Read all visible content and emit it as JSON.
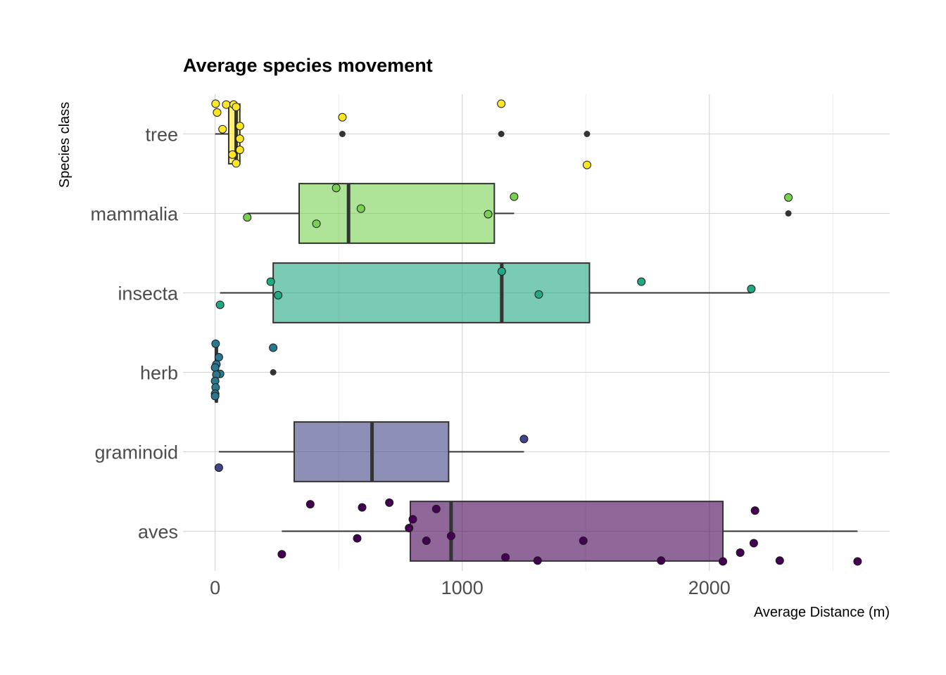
{
  "chart_data": {
    "type": "boxplot",
    "title": "Average species movement",
    "xlabel": "Average Distance (m)",
    "ylabel": "Species class",
    "xlim": [
      -130,
      2730
    ],
    "x_ticks": [
      0,
      1000,
      2000
    ],
    "x_tick_labels": [
      "0",
      "1000",
      "2000"
    ],
    "grid": true,
    "legend": "none",
    "categories": [
      "tree",
      "mammalia",
      "insecta",
      "herb",
      "graminoid",
      "aves"
    ],
    "series": [
      {
        "category": "tree",
        "color": "#fde725",
        "box": {
          "whisker_low": 0,
          "q1": 55,
          "median": 85,
          "q3": 100,
          "whisker_high": 100
        },
        "outliers": [
          515,
          1158,
          1505
        ],
        "points": [
          {
            "x": 2,
            "y": 0.38
          },
          {
            "x": 45,
            "y": 0.37
          },
          {
            "x": 75,
            "y": 0.37
          },
          {
            "x": 85,
            "y": 0.34
          },
          {
            "x": 8,
            "y": 0.27
          },
          {
            "x": 100,
            "y": 0.1
          },
          {
            "x": 30,
            "y": 0.06
          },
          {
            "x": 100,
            "y": -0.06
          },
          {
            "x": 100,
            "y": -0.2
          },
          {
            "x": 70,
            "y": -0.26
          },
          {
            "x": 85,
            "y": -0.37
          },
          {
            "x": 515,
            "y": 0.21
          },
          {
            "x": 1158,
            "y": 0.38
          },
          {
            "x": 1505,
            "y": -0.39
          }
        ]
      },
      {
        "category": "mammalia",
        "color": "#7ad151",
        "box": {
          "whisker_low": 130,
          "q1": 340,
          "median": 540,
          "q3": 1130,
          "whisker_high": 1210
        },
        "outliers": [
          2320
        ],
        "points": [
          {
            "x": 490,
            "y": 0.32
          },
          {
            "x": 590,
            "y": 0.06
          },
          {
            "x": 410,
            "y": -0.13
          },
          {
            "x": 1105,
            "y": -0.01
          },
          {
            "x": 130,
            "y": -0.05
          },
          {
            "x": 1210,
            "y": 0.21
          },
          {
            "x": 2320,
            "y": 0.2
          }
        ]
      },
      {
        "category": "insecta",
        "color": "#22a884",
        "box": {
          "whisker_low": 20,
          "q1": 235,
          "median": 1160,
          "q3": 1515,
          "whisker_high": 2170
        },
        "outliers": [],
        "points": [
          {
            "x": 225,
            "y": 0.14
          },
          {
            "x": 255,
            "y": -0.03
          },
          {
            "x": 20,
            "y": -0.15
          },
          {
            "x": 1160,
            "y": 0.27
          },
          {
            "x": 1310,
            "y": -0.02
          },
          {
            "x": 1725,
            "y": 0.14
          },
          {
            "x": 2170,
            "y": 0.05
          }
        ]
      },
      {
        "category": "herb",
        "color": "#2a788e",
        "box": {
          "whisker_low": 0,
          "q1": 2,
          "median": 5,
          "q3": 8,
          "whisker_high": 20
        },
        "outliers": [
          235
        ],
        "points": [
          {
            "x": 2,
            "y": 0.36
          },
          {
            "x": 15,
            "y": 0.19
          },
          {
            "x": 5,
            "y": 0.1
          },
          {
            "x": 0,
            "y": 0.06
          },
          {
            "x": 20,
            "y": -0.02
          },
          {
            "x": 5,
            "y": -0.03
          },
          {
            "x": 0,
            "y": -0.11
          },
          {
            "x": 2,
            "y": -0.19
          },
          {
            "x": 0,
            "y": -0.27
          },
          {
            "x": 0,
            "y": -0.3
          },
          {
            "x": 235,
            "y": 0.31
          }
        ]
      },
      {
        "category": "graminoid",
        "color": "#414487",
        "box": {
          "whisker_low": 15,
          "q1": 320,
          "median": 635,
          "q3": 945,
          "whisker_high": 1250
        },
        "outliers": [],
        "points": [
          {
            "x": 15,
            "y": -0.2
          },
          {
            "x": 1250,
            "y": 0.16
          }
        ]
      },
      {
        "category": "aves",
        "color": "#440154",
        "box": {
          "whisker_low": 270,
          "q1": 790,
          "median": 955,
          "q3": 2055,
          "whisker_high": 2600
        },
        "outliers": [],
        "points": [
          {
            "x": 385,
            "y": 0.34
          },
          {
            "x": 595,
            "y": 0.3
          },
          {
            "x": 705,
            "y": 0.36
          },
          {
            "x": 895,
            "y": 0.28
          },
          {
            "x": 2185,
            "y": 0.26
          },
          {
            "x": 800,
            "y": 0.15
          },
          {
            "x": 785,
            "y": 0.04
          },
          {
            "x": 955,
            "y": -0.06
          },
          {
            "x": 575,
            "y": -0.09
          },
          {
            "x": 855,
            "y": -0.12
          },
          {
            "x": 1490,
            "y": -0.12
          },
          {
            "x": 2180,
            "y": -0.15
          },
          {
            "x": 270,
            "y": -0.29
          },
          {
            "x": 1175,
            "y": -0.33
          },
          {
            "x": 1305,
            "y": -0.37
          },
          {
            "x": 1805,
            "y": -0.37
          },
          {
            "x": 2055,
            "y": -0.38
          },
          {
            "x": 2125,
            "y": -0.27
          },
          {
            "x": 2285,
            "y": -0.37
          },
          {
            "x": 2600,
            "y": -0.38
          }
        ]
      }
    ]
  }
}
